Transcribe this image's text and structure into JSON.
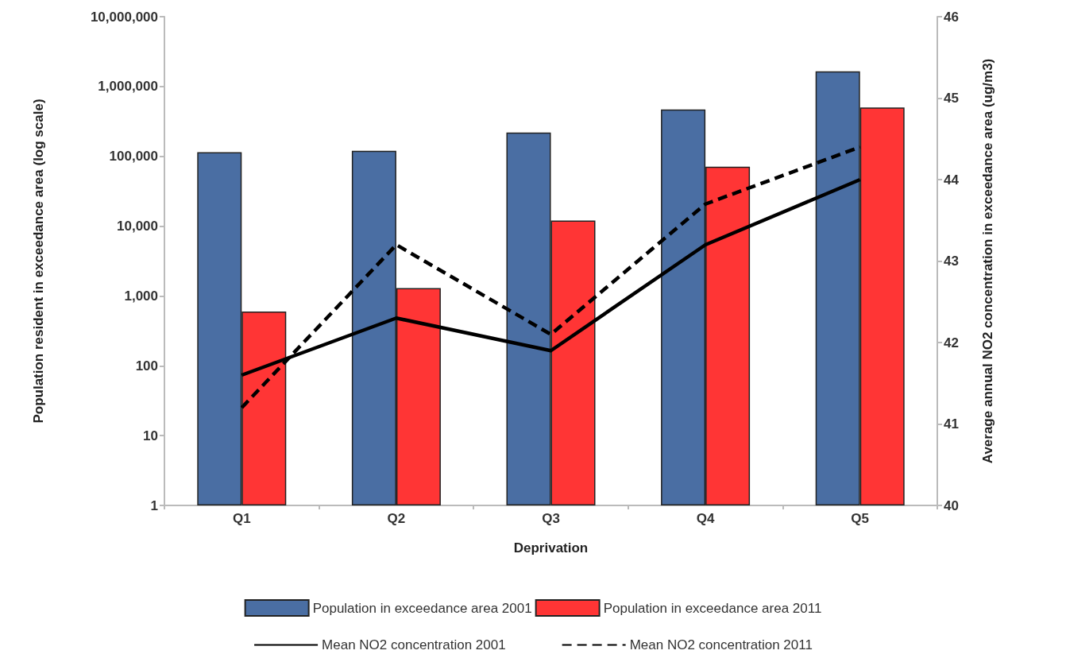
{
  "chart_data": {
    "type": "bar",
    "xlabel": "Deprivation",
    "ylabel": "Population resident in exceedance area (log scale)",
    "y2label": "Average annual NO2 concentration in exceedance area (ug/m3)",
    "categories": [
      "Q1",
      "Q2",
      "Q3",
      "Q4",
      "Q5"
    ],
    "series": [
      {
        "name": "Population in exceedance area 2001",
        "color": "#4a6ea3",
        "values": [
          115000,
          120000,
          220000,
          470000,
          1650000
        ]
      },
      {
        "name": "Population in exceedance area 2011",
        "color": "#ff3535",
        "values": [
          600,
          1300,
          12000,
          71000,
          500000
        ]
      },
      {
        "name": "Mean NO2 concentration 2001",
        "type": "line",
        "axis": "y2",
        "color": "#000000",
        "line_style": "solid",
        "values": [
          41.6,
          42.3,
          41.9,
          43.2,
          44.0
        ]
      },
      {
        "name": "Mean NO2 concentration 2011",
        "type": "line",
        "axis": "y2",
        "color": "#000000",
        "line_style": "dashed",
        "values": [
          41.2,
          43.2,
          42.1,
          43.7,
          44.4
        ]
      }
    ],
    "log": "y",
    "ylim": [
      1,
      10000000
    ],
    "yticks": [
      1,
      10,
      100,
      {
        "value": 1000,
        "label": "1,000"
      },
      {
        "value": 10000,
        "label": "10,000"
      },
      {
        "value": 100000,
        "label": "100,000"
      },
      {
        "value": 1000000,
        "label": "1,000,000"
      },
      {
        "value": 10000000,
        "label": "10,000,000"
      }
    ],
    "y2lim": [
      40,
      46
    ],
    "y2ticks": [
      40,
      41,
      42,
      43,
      44,
      45,
      46
    ],
    "grid": false,
    "legend": "bottom",
    "marker": "none"
  }
}
